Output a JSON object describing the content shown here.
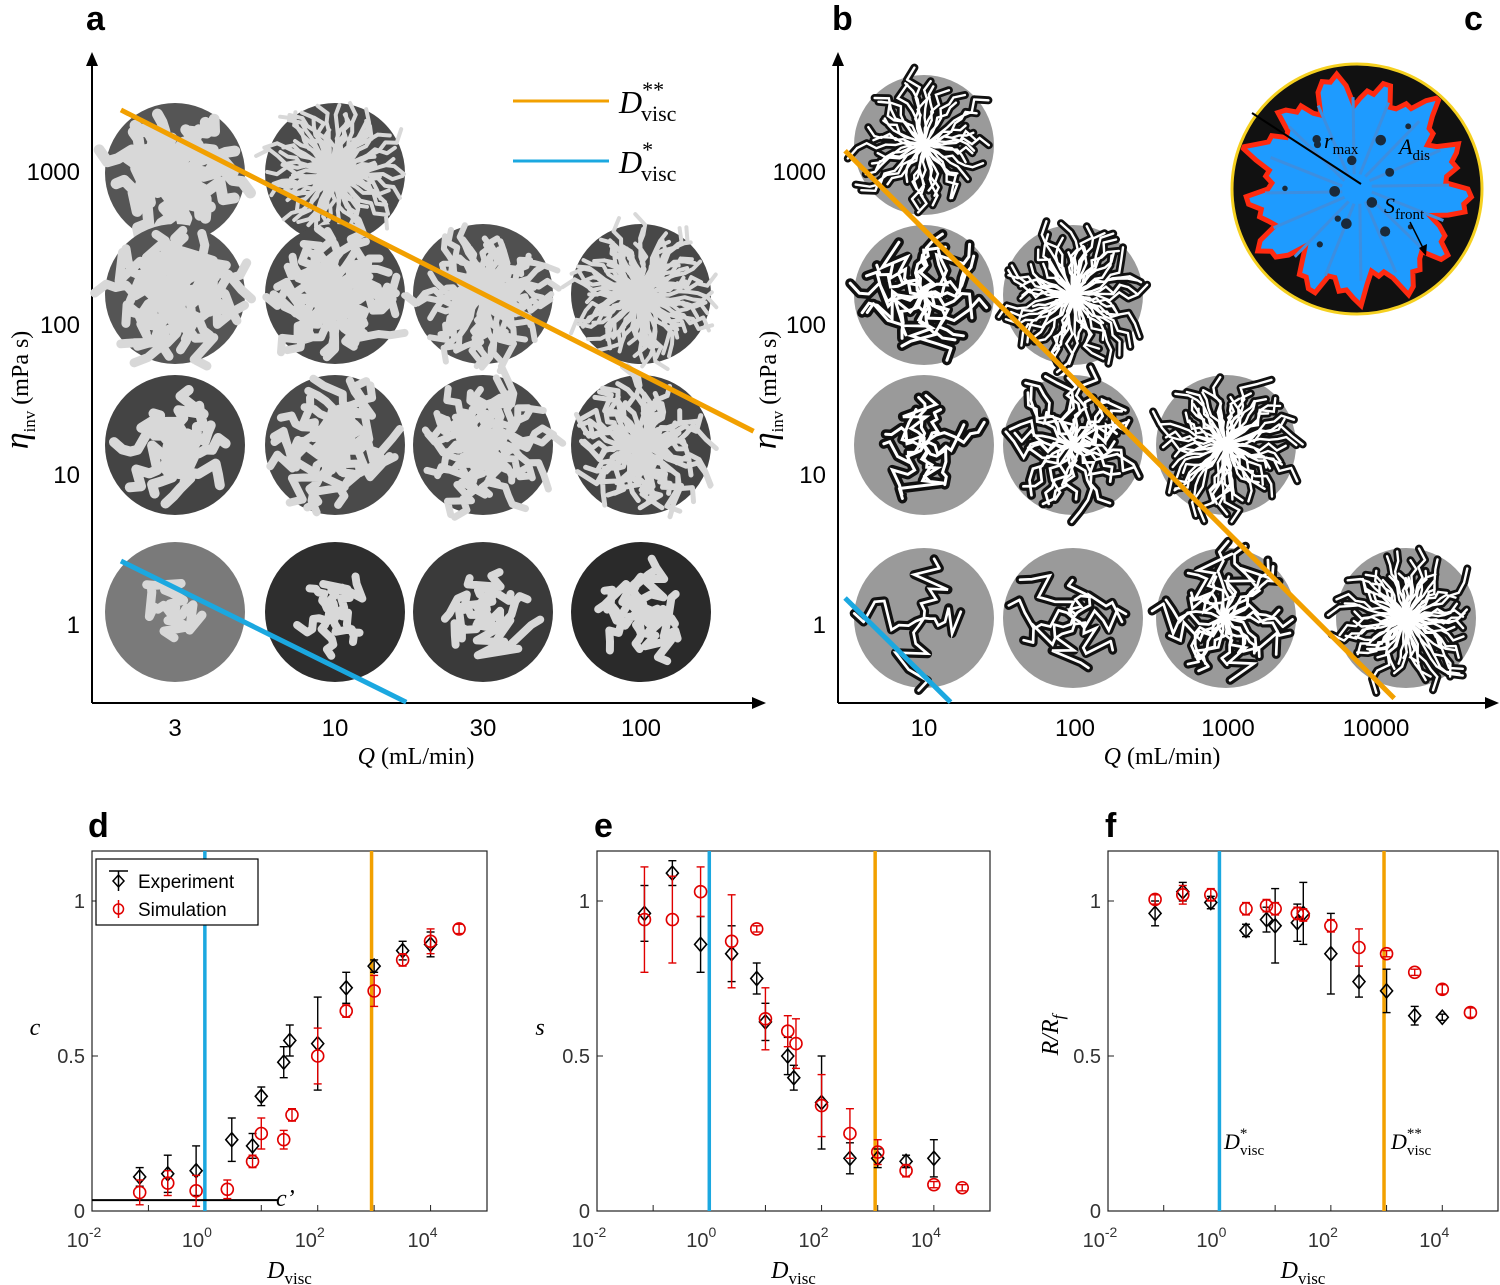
{
  "panels": {
    "a": "a",
    "b": "b",
    "c": "c",
    "d": "d",
    "e": "e",
    "f": "f"
  },
  "colors": {
    "orange": "#F2A000",
    "blue": "#1BA8E0",
    "red": "#E00000",
    "black": "#000000",
    "fill_blue": "#1E9BFF",
    "front_red": "#FF2A10",
    "disk_yellow": "#F5D020"
  },
  "panel_a": {
    "xlabel_var": "Q",
    "xlabel_unit": " (mL/min)",
    "ylabel_eta": "η",
    "ylabel_sub": "inv",
    "ylabel_unit": " (mPa s)",
    "x_ticks": [
      "3",
      "10",
      "30",
      "100"
    ],
    "y_ticks": [
      "1000",
      "100",
      "10",
      "1"
    ],
    "legend": {
      "dvisc2_main": "D",
      "dvisc2_sup": "**",
      "dvisc2_sub": "visc",
      "dvisc1_main": "D",
      "dvisc1_sup": "*",
      "dvisc1_sub": "visc"
    },
    "image_grid": {
      "rows_eta_mPa_s": [
        1000,
        100,
        10,
        1
      ],
      "cols_Q_mL_min": [
        3,
        10,
        30,
        100
      ],
      "counts_per_row": [
        2,
        4,
        4,
        4
      ]
    }
  },
  "panel_b": {
    "xlabel_var": "Q",
    "xlabel_unit": " (mL/min)",
    "ylabel_eta": "η",
    "ylabel_sub": "inv",
    "ylabel_unit": " (mPa s)",
    "x_ticks": [
      "10",
      "100",
      "1000",
      "10000"
    ],
    "y_ticks": [
      "1000",
      "100",
      "10",
      "1"
    ],
    "image_grid": {
      "rows_eta_mPa_s": [
        1000,
        100,
        10,
        1
      ],
      "counts_per_row": [
        1,
        2,
        3,
        4
      ]
    }
  },
  "panel_c": {
    "r_main": "r",
    "r_sub": "max",
    "a_main": "A",
    "a_sub": "dis",
    "s_main": "S",
    "s_sub": "front"
  },
  "bottom_axes": {
    "xlabel_main": "D",
    "xlabel_sub": "visc",
    "x_tick_bases": [
      "10",
      "10",
      "10",
      "10"
    ],
    "x_tick_exps": [
      "-2",
      "0",
      "2",
      "4"
    ],
    "y_ticks": [
      "0",
      "0.5",
      "1"
    ]
  },
  "legend_d": {
    "experiment": "Experiment",
    "simulation": "Simulation"
  },
  "annotations": {
    "c_prime": "c’",
    "f_dvisc1_main": "D",
    "f_dvisc1_sup": "*",
    "f_dvisc1_sub": "visc",
    "f_dvisc2_main": "D",
    "f_dvisc2_sup": "**",
    "f_dvisc2_sub": "visc"
  },
  "chart_data": [
    {
      "panel": "a",
      "type": "scatter",
      "xlabel": "Q (mL/min)",
      "ylabel": "η_inv (mPa s)",
      "x_scale": "log",
      "y_scale": "log",
      "lines": [
        {
          "name": "D**_visc",
          "color": "#F2A000",
          "x": [
            2.0,
            230
          ],
          "y": [
            2600,
            20
          ]
        },
        {
          "name": "D*_visc",
          "color": "#1BA8E0",
          "x": [
            2.0,
            17
          ],
          "y": [
            2.8,
            0.33
          ]
        }
      ]
    },
    {
      "panel": "b",
      "type": "scatter",
      "xlabel": "Q (mL/min)",
      "ylabel": "η_inv (mPa s)",
      "x_scale": "log",
      "y_scale": "log",
      "lines": [
        {
          "name": "D**_visc",
          "color": "#F2A000",
          "x": [
            3.0,
            13000
          ],
          "y": [
            1400,
            0.35
          ]
        },
        {
          "name": "D*_visc",
          "color": "#1BA8E0",
          "x": [
            3.0,
            15
          ],
          "y": [
            1.6,
            0.33
          ]
        }
      ]
    },
    {
      "panel": "d",
      "type": "scatter",
      "xlabel": "D_visc",
      "ylabel": "c",
      "x_scale": "log",
      "xlim": [
        0.01,
        100000
      ],
      "ylim": [
        0,
        1.1
      ],
      "vlines": [
        {
          "x": 1,
          "color": "#1BA8E0"
        },
        {
          "x": 900,
          "color": "#F2A000"
        }
      ],
      "hline": {
        "y": 0.035,
        "x_range": [
          0.01,
          20
        ],
        "label": "c’"
      },
      "series": [
        {
          "name": "Experiment",
          "marker": "diamond",
          "color": "#000000",
          "x": [
            0.07,
            0.22,
            0.7,
            3,
            7,
            10,
            25,
            32,
            100,
            320,
            1000,
            3200,
            10000
          ],
          "y": [
            0.11,
            0.12,
            0.13,
            0.23,
            0.21,
            0.37,
            0.48,
            0.55,
            0.54,
            0.72,
            0.79,
            0.84,
            0.86
          ],
          "err": [
            0.03,
            0.06,
            0.08,
            0.07,
            0.04,
            0.03,
            0.05,
            0.05,
            0.15,
            0.05,
            0.02,
            0.03,
            0.04
          ]
        },
        {
          "name": "Simulation",
          "marker": "circle",
          "color": "#E00000",
          "x": [
            0.07,
            0.22,
            0.7,
            2.5,
            7,
            10,
            25,
            35,
            100,
            320,
            1000,
            3200,
            10000,
            32000
          ],
          "y": [
            0.06,
            0.09,
            0.065,
            0.07,
            0.16,
            0.25,
            0.23,
            0.31,
            0.5,
            0.645,
            0.71,
            0.81,
            0.87,
            0.91
          ],
          "err": [
            0.04,
            0.04,
            0.05,
            0.03,
            0.02,
            0.05,
            0.03,
            0.02,
            0.09,
            0.02,
            0.05,
            0.02,
            0.04,
            0.015
          ]
        }
      ]
    },
    {
      "panel": "e",
      "type": "scatter",
      "xlabel": "D_visc",
      "ylabel": "s",
      "x_scale": "log",
      "xlim": [
        0.01,
        100000
      ],
      "ylim": [
        0,
        1.1
      ],
      "vlines": [
        {
          "x": 1,
          "color": "#1BA8E0"
        },
        {
          "x": 900,
          "color": "#F2A000"
        }
      ],
      "series": [
        {
          "name": "Experiment",
          "marker": "diamond",
          "color": "#000000",
          "x": [
            0.07,
            0.22,
            0.7,
            2.5,
            7,
            10,
            25,
            32,
            100,
            320,
            1000,
            3200,
            10000
          ],
          "y": [
            0.96,
            1.09,
            0.86,
            0.83,
            0.75,
            0.61,
            0.5,
            0.43,
            0.35,
            0.17,
            0.17,
            0.16,
            0.17
          ],
          "err": [
            0.09,
            0.04,
            0.09,
            0.09,
            0.05,
            0.06,
            0.06,
            0.04,
            0.15,
            0.05,
            0.03,
            0.02,
            0.06
          ]
        },
        {
          "name": "Simulation",
          "marker": "circle",
          "color": "#E00000",
          "x": [
            0.07,
            0.22,
            0.7,
            2.5,
            7,
            10,
            25,
            35,
            100,
            320,
            1000,
            3200,
            10000,
            32000
          ],
          "y": [
            0.94,
            0.94,
            1.03,
            0.87,
            0.91,
            0.62,
            0.58,
            0.54,
            0.34,
            0.25,
            0.19,
            0.13,
            0.085,
            0.075
          ],
          "err": [
            0.17,
            0.14,
            0.08,
            0.15,
            0.01,
            0.1,
            0.05,
            0.08,
            0.1,
            0.08,
            0.04,
            0.02,
            0.01,
            0.01
          ]
        }
      ]
    },
    {
      "panel": "f",
      "type": "scatter",
      "xlabel": "D_visc",
      "ylabel": "R/R_f",
      "x_scale": "log",
      "xlim": [
        0.01,
        100000
      ],
      "ylim": [
        0,
        1.1
      ],
      "vlines": [
        {
          "x": 1,
          "color": "#1BA8E0"
        },
        {
          "x": 900,
          "color": "#F2A000"
        }
      ],
      "series": [
        {
          "name": "Experiment",
          "marker": "diamond",
          "color": "#000000",
          "x": [
            0.07,
            0.22,
            0.7,
            3,
            7,
            10,
            25,
            32,
            100,
            320,
            1000,
            3200,
            10000
          ],
          "y": [
            0.96,
            1.03,
            0.995,
            0.905,
            0.94,
            0.92,
            0.93,
            0.96,
            0.83,
            0.74,
            0.71,
            0.63,
            0.625
          ],
          "err": [
            0.04,
            0.03,
            0.02,
            0.02,
            0.04,
            0.12,
            0.06,
            0.1,
            0.13,
            0.05,
            0.07,
            0.03,
            0.01
          ]
        },
        {
          "name": "Simulation",
          "marker": "circle",
          "color": "#E00000",
          "x": [
            0.07,
            0.22,
            0.7,
            3,
            7,
            10,
            25,
            32,
            100,
            320,
            1000,
            3200,
            10000,
            32000
          ],
          "y": [
            1.005,
            1.02,
            1.02,
            0.975,
            0.985,
            0.975,
            0.96,
            0.955,
            0.92,
            0.85,
            0.83,
            0.77,
            0.715,
            0.64
          ],
          "err": [
            0.015,
            0.03,
            0.02,
            0.02,
            0.02,
            0.02,
            0.02,
            0.02,
            0.02,
            0.06,
            0.01,
            0.01,
            0.015,
            0.015
          ]
        }
      ]
    }
  ]
}
